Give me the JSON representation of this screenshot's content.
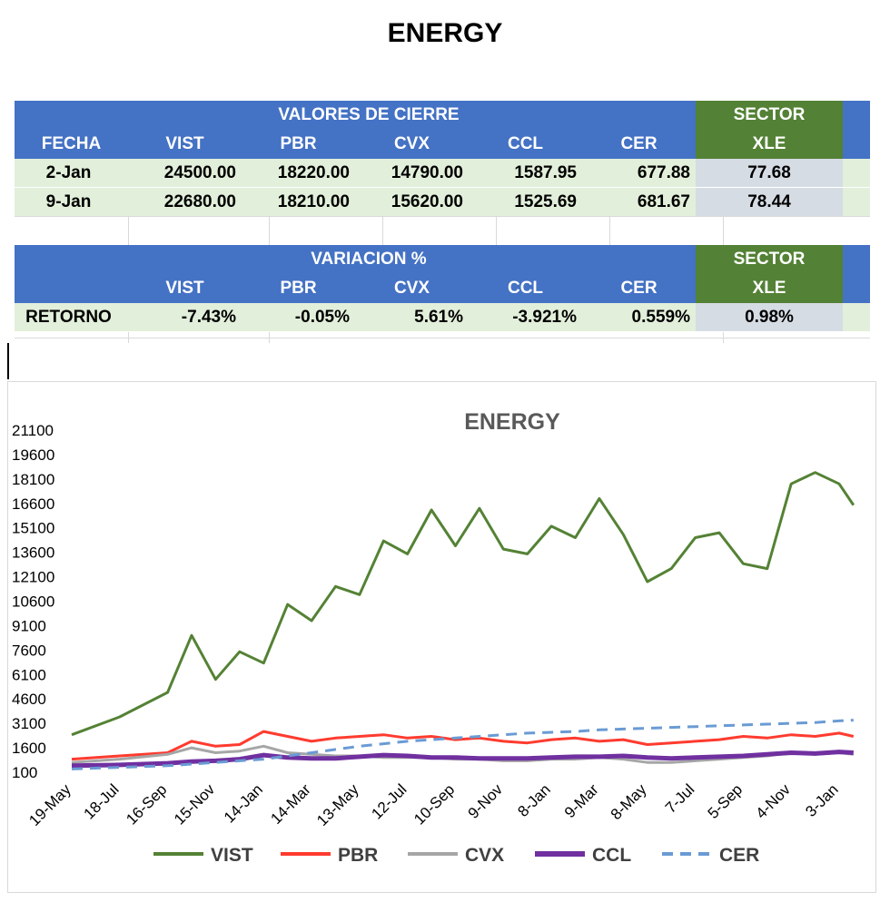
{
  "page": {
    "title": "ENERGY"
  },
  "table_close": {
    "banner": "VALORES DE CIERRE",
    "sector_label": "SECTOR",
    "headers": [
      "FECHA",
      "VIST",
      "PBR",
      "CVX",
      "CCL",
      "CER",
      "XLE"
    ],
    "rows": [
      [
        "2-Jan",
        "24500.00",
        "18220.00",
        "14790.00",
        "1587.95",
        "677.88",
        "77.68"
      ],
      [
        "9-Jan",
        "22680.00",
        "18210.00",
        "15620.00",
        "1525.69",
        "681.67",
        "78.44"
      ]
    ]
  },
  "table_var": {
    "banner": "VARIACION %",
    "sector_label": "SECTOR",
    "headers": [
      "",
      "VIST",
      "PBR",
      "CVX",
      "CCL",
      "CER",
      "XLE"
    ],
    "rows": [
      [
        "RETORNO",
        "-7.43%",
        "-0.05%",
        "5.61%",
        "-3.921%",
        "0.559%",
        "0.98%"
      ]
    ]
  },
  "chart_data": {
    "type": "line",
    "title": "ENERGY",
    "y_ticks": [
      100,
      1600,
      3100,
      4600,
      6100,
      7600,
      9100,
      10600,
      12100,
      13600,
      15100,
      16600,
      18100,
      19600,
      21100
    ],
    "ylim": [
      100,
      21100
    ],
    "x_labels": [
      "19-May",
      "18-Jul",
      "16-Sep",
      "15-Nov",
      "14-Jan",
      "14-Mar",
      "13-May",
      "12-Jul",
      "10-Sep",
      "9-Nov",
      "8-Jan",
      "9-Mar",
      "8-May",
      "7-Jul",
      "5-Sep",
      "4-Nov",
      "3-Jan"
    ],
    "x_index": [
      0,
      1,
      2,
      2.5,
      3,
      3.5,
      4,
      4.5,
      5,
      5.5,
      6,
      6.5,
      7,
      7.5,
      8,
      8.5,
      9,
      9.5,
      10,
      10.5,
      11,
      11.5,
      12,
      12.5,
      13,
      13.5,
      14,
      14.5,
      15,
      15.5,
      16,
      16.3
    ],
    "series": [
      {
        "name": "VIST",
        "color": "#548235",
        "dash": "",
        "values": [
          2400,
          3500,
          5000,
          8500,
          5800,
          7500,
          6800,
          10400,
          9400,
          11500,
          11000,
          14300,
          13500,
          16200,
          14000,
          16300,
          13800,
          13500,
          15200,
          14500,
          16900,
          14700,
          11800,
          12600,
          14500,
          14800,
          12900,
          12600,
          17800,
          18500,
          17800,
          16500
        ]
      },
      {
        "name": "PBR",
        "color": "#ff3b2f",
        "dash": "",
        "values": [
          900,
          1100,
          1300,
          2000,
          1700,
          1800,
          2600,
          2300,
          2000,
          2200,
          2300,
          2400,
          2200,
          2300,
          2100,
          2200,
          2000,
          1900,
          2100,
          2200,
          2000,
          2100,
          1800,
          1900,
          2000,
          2100,
          2300,
          2200,
          2400,
          2300,
          2500,
          2300
        ]
      },
      {
        "name": "CVX",
        "color": "#a6a6a6",
        "dash": "",
        "values": [
          700,
          900,
          1200,
          1600,
          1300,
          1400,
          1700,
          1300,
          1200,
          1100,
          1100,
          1000,
          1000,
          1000,
          900,
          900,
          800,
          800,
          900,
          900,
          1000,
          900,
          700,
          700,
          800,
          900,
          1000,
          1100,
          1300,
          1200,
          1300,
          1200
        ]
      },
      {
        "name": "CCL",
        "color": "#7030a0",
        "dash": "",
        "values": [
          500,
          550,
          650,
          750,
          800,
          900,
          1150,
          1000,
          950,
          950,
          1050,
          1150,
          1100,
          1000,
          1000,
          950,
          950,
          950,
          1000,
          1050,
          1050,
          1100,
          1000,
          950,
          1000,
          1050,
          1100,
          1200,
          1300,
          1250,
          1350,
          1300
        ]
      },
      {
        "name": "CER",
        "color": "#6a9bd4",
        "dash": "12 8",
        "values": [
          300,
          400,
          500,
          600,
          700,
          800,
          900,
          1100,
          1300,
          1500,
          1700,
          1850,
          2000,
          2100,
          2200,
          2300,
          2400,
          2500,
          2550,
          2600,
          2700,
          2750,
          2800,
          2850,
          2900,
          2950,
          3000,
          3050,
          3100,
          3150,
          3250,
          3300
        ]
      }
    ]
  }
}
